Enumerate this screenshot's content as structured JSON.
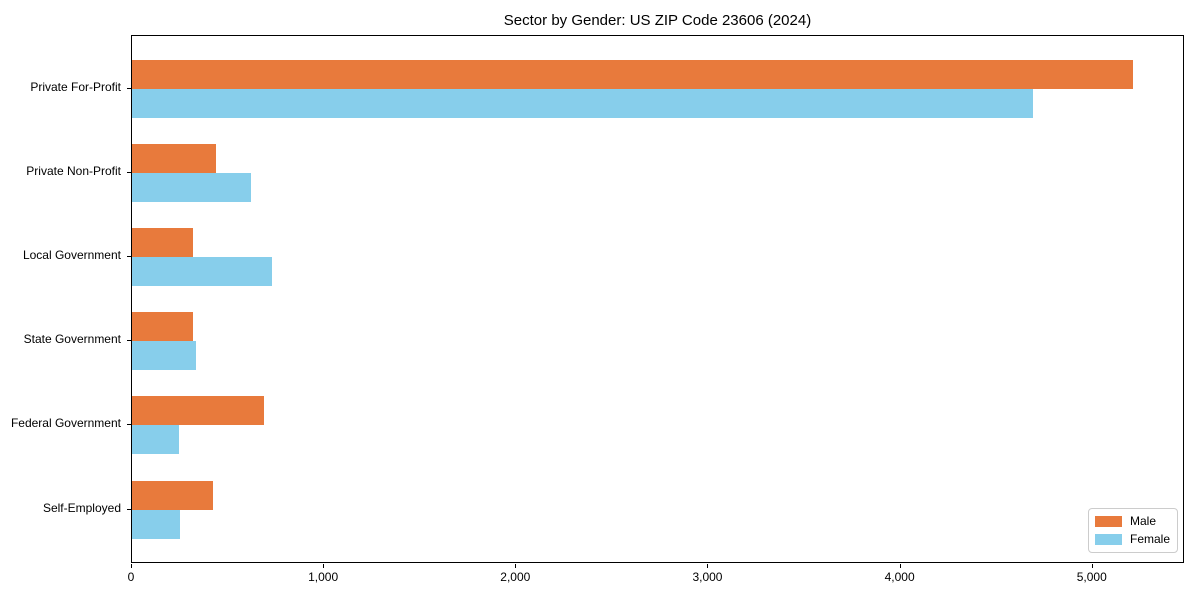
{
  "chart_data": {
    "type": "bar",
    "orientation": "horizontal",
    "title": "Sector by Gender: US ZIP Code 23606 (2024)",
    "categories": [
      "Private For-Profit",
      "Private Non-Profit",
      "Local Government",
      "State Government",
      "Federal Government",
      "Self-Employed"
    ],
    "series": [
      {
        "name": "Male",
        "color": "#E87A3C",
        "values": [
          5220,
          440,
          320,
          320,
          690,
          420
        ]
      },
      {
        "name": "Female",
        "color": "#87CEEB",
        "values": [
          4700,
          620,
          730,
          335,
          245,
          250
        ]
      }
    ],
    "xlabel": "",
    "ylabel": "",
    "xlim": [
      0,
      5480
    ],
    "xticks": [
      0,
      1000,
      2000,
      3000,
      4000,
      5000
    ],
    "xtick_labels": [
      "0",
      "1,000",
      "2,000",
      "3,000",
      "4,000",
      "5,000"
    ],
    "grid": false,
    "legend_position": "lower right",
    "colors": {
      "male": "#E87A3C",
      "female": "#87CEEB",
      "spine": "#000000",
      "background": "#ffffff"
    }
  }
}
